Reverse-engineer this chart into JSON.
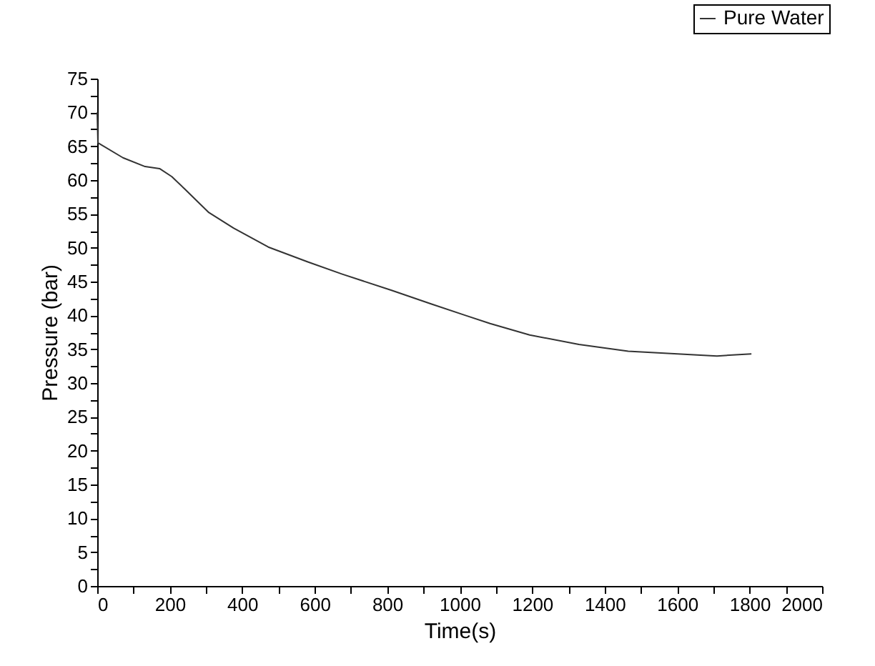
{
  "chart_data": {
    "type": "line",
    "xlabel": "Time(s)",
    "ylabel": "Pressure (bar)",
    "x": [
      0,
      2,
      71,
      132,
      172,
      206,
      241,
      308,
      376,
      472,
      581,
      676,
      812,
      921,
      1016,
      1084,
      1193,
      1329,
      1465,
      1601,
      1710,
      1805
    ],
    "series": [
      {
        "name": "Pure Water",
        "color": "#333333",
        "values": [
          70,
          65.5,
          63.3,
          62.0,
          61.7,
          60.5,
          58.7,
          55.2,
          52.9,
          50.1,
          47.9,
          46.1,
          43.7,
          41.7,
          40.0,
          38.8,
          37.1,
          35.7,
          34.7,
          34.3,
          34.0,
          34.3
        ]
      }
    ],
    "xlim": [
      0,
      2000
    ],
    "xticks": [
      0,
      {
        "value": 100,
        "label": null
      },
      200,
      {
        "value": 300,
        "label": null
      },
      400,
      {
        "value": 500,
        "label": null
      },
      600,
      {
        "value": 700,
        "label": null
      },
      800,
      {
        "value": 900,
        "label": null
      },
      1000,
      {
        "value": 1100,
        "label": null
      },
      1200,
      {
        "value": 1300,
        "label": null
      },
      1400,
      {
        "value": 1500,
        "label": null
      },
      1600,
      {
        "value": 1700,
        "label": null
      },
      1800,
      {
        "value": 1900,
        "label": null
      },
      2000
    ],
    "ylim": [
      0,
      75
    ],
    "yticks": [
      0,
      {
        "value": 2.5,
        "label": null
      },
      5,
      {
        "value": 7.5,
        "label": null
      },
      10,
      {
        "value": 12.5,
        "label": null
      },
      15,
      {
        "value": 17.5,
        "label": null
      },
      20,
      {
        "value": 22.5,
        "label": null
      },
      25,
      {
        "value": 27.5,
        "label": null
      },
      30,
      {
        "value": 32.5,
        "label": null
      },
      35,
      {
        "value": 37.5,
        "label": null
      },
      40,
      {
        "value": 42.5,
        "label": null
      },
      45,
      {
        "value": 47.5,
        "label": null
      },
      50,
      {
        "value": 52.5,
        "label": null
      },
      55,
      {
        "value": 57.5,
        "label": null
      },
      60,
      {
        "value": 62.5,
        "label": null
      },
      65,
      {
        "value": 67.5,
        "label": null
      },
      70,
      {
        "value": 72.5,
        "label": null
      },
      75
    ],
    "grid": false,
    "legend": "top right",
    "marker": "none",
    "line_style": "solid"
  }
}
